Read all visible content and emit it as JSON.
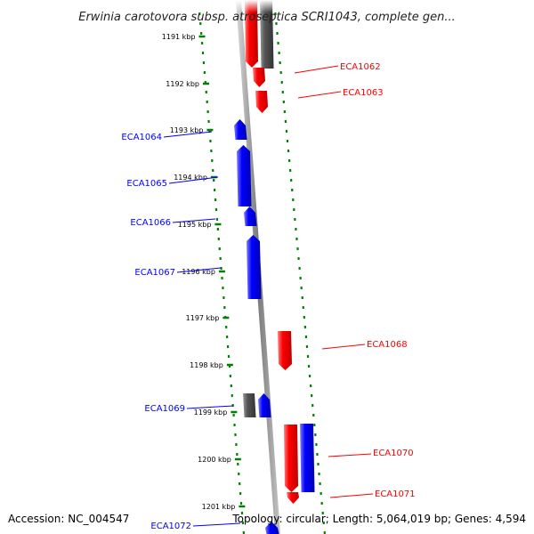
{
  "title": "Erwinia carotovora subsp. atroseptica SCRI1043, complete gen...",
  "accession": "Accession: NC_004547",
  "summary": "Topology: circular; Length: 5,064,019 bp; Genes: 4,594",
  "colors": {
    "forward": "#ff0000",
    "reverse": "#0000ff",
    "other": "#555555",
    "ruler": "#008000",
    "backbone": "#888888"
  },
  "kbp_labels": [
    "1191 kbp",
    "1192 kbp",
    "1193 kbp",
    "1194 kbp",
    "1195 kbp",
    "1196 kbp",
    "1197 kbp",
    "1198 kbp",
    "1199 kbp",
    "1200 kbp",
    "1201 kbp"
  ],
  "genes": [
    {
      "label": "ECA1062",
      "strand": "forward"
    },
    {
      "label": "ECA1063",
      "strand": "forward"
    },
    {
      "label": "ECA1064",
      "strand": "reverse"
    },
    {
      "label": "ECA1065",
      "strand": "reverse"
    },
    {
      "label": "ECA1066",
      "strand": "reverse"
    },
    {
      "label": "ECA1067",
      "strand": "reverse"
    },
    {
      "label": "ECA1068",
      "strand": "forward"
    },
    {
      "label": "ECA1069",
      "strand": "reverse"
    },
    {
      "label": "ECA1070",
      "strand": "forward"
    },
    {
      "label": "ECA1071",
      "strand": "forward"
    },
    {
      "label": "ECA1072",
      "strand": "reverse"
    }
  ]
}
